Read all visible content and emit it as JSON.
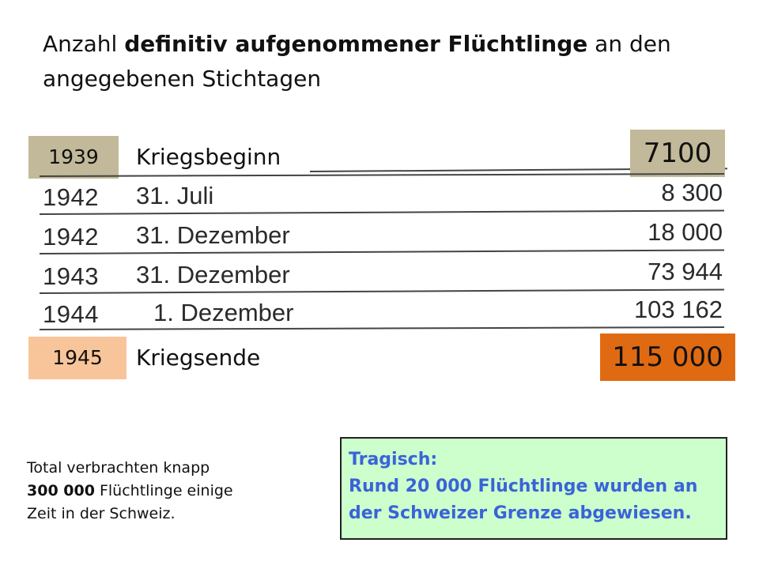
{
  "title": {
    "prefix": "Anzahl ",
    "bold": "definitiv aufgenommener  Flüchtlinge",
    "suffix": " an den angegebenen Stichtagen"
  },
  "start": {
    "year": "1939",
    "event": "Kriegsbeginn",
    "count": "7100",
    "color": "#c1b999"
  },
  "end": {
    "year": "1945",
    "event": "Kriegsende",
    "count": "115 000",
    "color": "#f8c59a",
    "count_color": "#e06a12"
  },
  "rows": [
    {
      "year": "1942",
      "date": "31. Juli",
      "count": "8 300"
    },
    {
      "year": "1942",
      "date": "31. Dezember",
      "count": "18 000"
    },
    {
      "year": "1943",
      "date": "31. Dezember",
      "count": "73 944"
    },
    {
      "year": "1944",
      "date": "1. Dezember",
      "count": "103 162"
    }
  ],
  "note": {
    "line1": "Total verbrachten knapp",
    "bold": "300 000",
    "line2_rest": " Flüchtlinge einige",
    "line3": "Zeit in der Schweiz."
  },
  "tragic": {
    "heading": "Tragisch:",
    "line1": "Rund 20 000 Flüchtlinge wurden an",
    "line2": "der Schweizer Grenze abgewiesen.",
    "text_color": "#3a63d8",
    "background": "#ccffcc"
  }
}
